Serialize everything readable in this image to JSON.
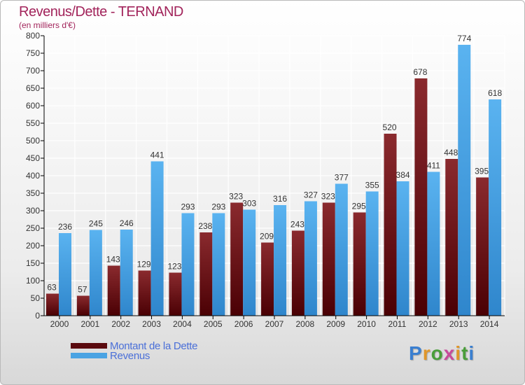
{
  "title": "Revenus/Dette - TERNAND",
  "subtitle": "(en milliers d'€)",
  "chart_data": {
    "type": "bar",
    "categories": [
      "2000",
      "2001",
      "2002",
      "2003",
      "2004",
      "2005",
      "2006",
      "2007",
      "2008",
      "2009",
      "2010",
      "2011",
      "2012",
      "2013",
      "2014"
    ],
    "series": [
      {
        "name": "Montant de la Dette",
        "color": "#7a1418",
        "values": [
          63,
          57,
          143,
          129,
          123,
          238,
          323,
          209,
          243,
          323,
          295,
          520,
          678,
          448,
          395
        ],
        "labels": [
          "63",
          "57",
          "143",
          "129",
          "123",
          "238",
          "323",
          "209",
          "243",
          "323",
          "295",
          "520",
          "678",
          "448",
          "395"
        ]
      },
      {
        "name": "Revenus",
        "color": "#4aa3e3",
        "values": [
          236,
          245,
          246,
          441,
          293,
          293,
          303,
          316,
          327,
          377,
          355,
          384,
          411,
          774,
          618
        ],
        "labels": [
          "236",
          "245",
          "246",
          "441",
          "293",
          "293",
          "303",
          "316",
          "327",
          "377",
          "355",
          "384",
          "411",
          "774",
          "618"
        ]
      }
    ],
    "ylim": [
      0,
      800
    ],
    "yticks": [
      0,
      50,
      100,
      150,
      200,
      250,
      300,
      350,
      400,
      450,
      500,
      550,
      600,
      650,
      700,
      750,
      800
    ],
    "ytick_labels": [
      "0",
      "50",
      "100",
      "150",
      "200",
      "250",
      "300",
      "350",
      "400",
      "450",
      "500",
      "550",
      "600",
      "650",
      "700",
      "750",
      "800"
    ],
    "grid": true,
    "legend_position": "bottom-left"
  },
  "legend": {
    "items": [
      {
        "label": "Montant de la Dette",
        "color": "#5a0a0e"
      },
      {
        "label": "Revenus",
        "color": "#4aa3e3"
      }
    ]
  },
  "logo": {
    "text": "Proxiti"
  }
}
